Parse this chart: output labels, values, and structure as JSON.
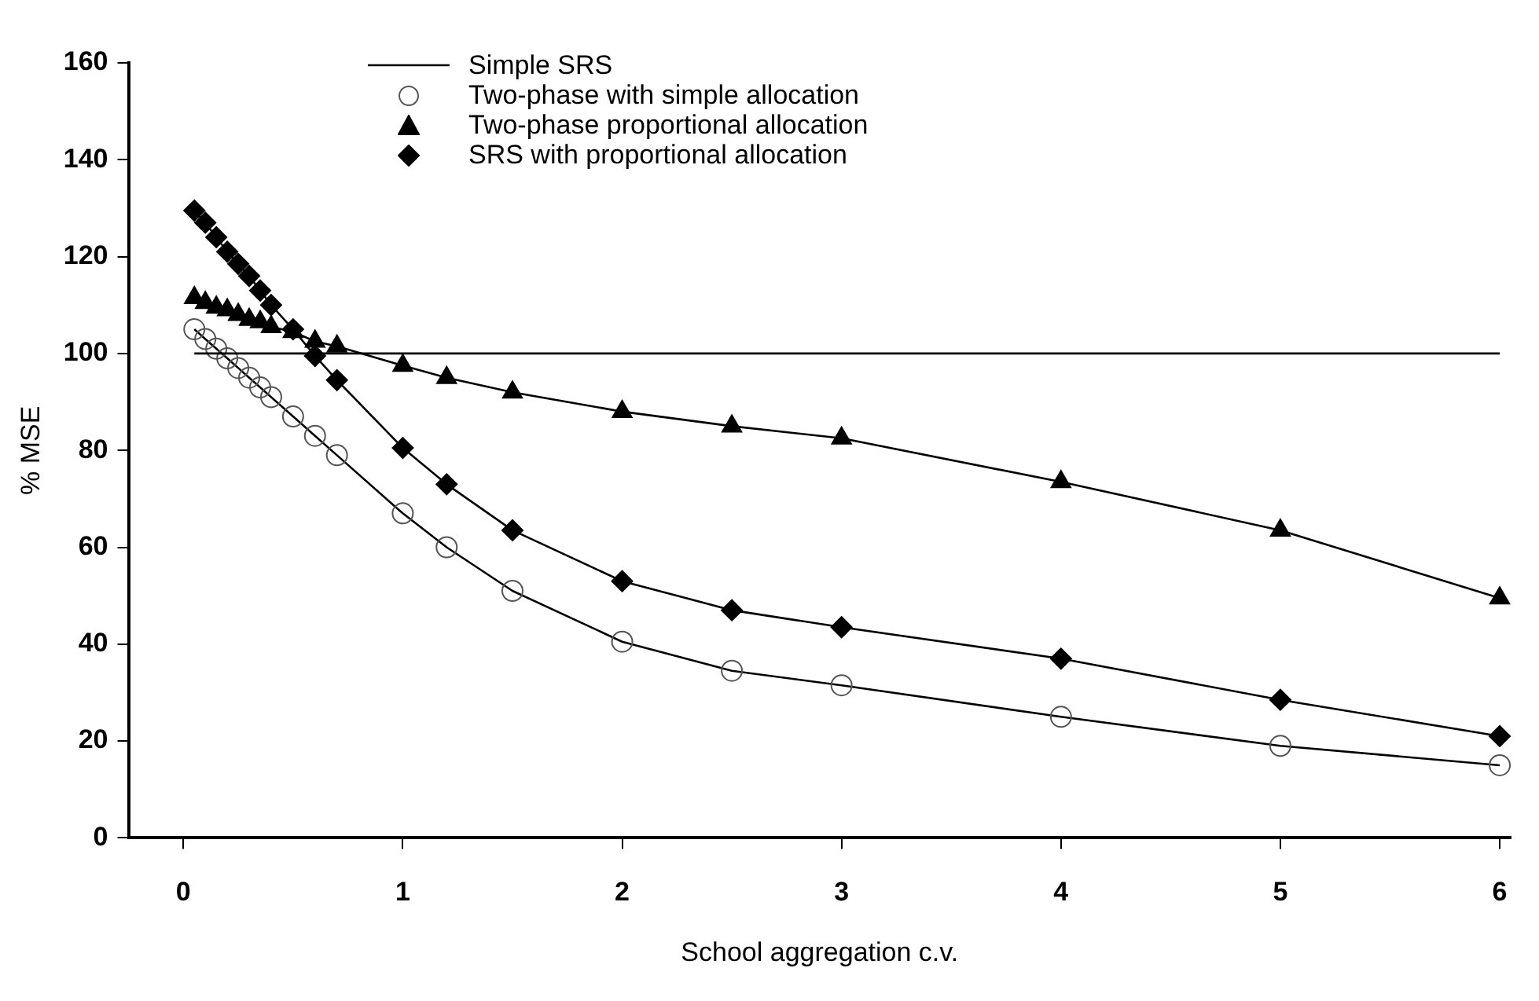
{
  "chart_data": {
    "type": "line",
    "xlabel": "School aggregation c.v.",
    "ylabel": "% MSE",
    "xlim": [
      -0.25,
      6.05
    ],
    "xticks": [
      0,
      1,
      2,
      3,
      4,
      5,
      6
    ],
    "ylim": [
      0,
      160
    ],
    "yticks": [
      0,
      20,
      40,
      60,
      80,
      100,
      120,
      140,
      160
    ],
    "grid": false,
    "legend": "top left",
    "series": [
      {
        "name": "Simple SRS",
        "color": "#000000",
        "marker": "none",
        "x": [
          0.05,
          6
        ],
        "values": [
          100,
          100
        ]
      },
      {
        "name": "Two-phase with simple allocation",
        "color": "#000000",
        "marker": "circle",
        "x": [
          0.05,
          0.1,
          0.15,
          0.2,
          0.25,
          0.3,
          0.35,
          0.4,
          0.5,
          0.6,
          0.7,
          1,
          1.2,
          1.5,
          2,
          2.5,
          3,
          4,
          5,
          6
        ],
        "values": [
          105,
          103,
          101,
          99,
          97,
          95,
          93,
          91,
          87,
          83,
          79,
          67,
          60,
          51,
          40.5,
          34.5,
          31.5,
          25,
          19,
          15
        ]
      },
      {
        "name": "Two-phase proportional allocation",
        "color": "#000000",
        "marker": "triangle",
        "x": [
          0.05,
          0.1,
          0.15,
          0.2,
          0.25,
          0.3,
          0.35,
          0.4,
          0.5,
          0.6,
          0.7,
          1,
          1.2,
          1.5,
          2,
          2.5,
          3,
          4,
          5,
          6
        ],
        "values": [
          111.5,
          110.5,
          109.5,
          109,
          108,
          107,
          106.5,
          105.5,
          104.5,
          102.5,
          101.5,
          97.5,
          95,
          92,
          88,
          85,
          82.5,
          73.5,
          63.5,
          49.5
        ]
      },
      {
        "name": "SRS with proportional allocation",
        "color": "#000000",
        "marker": "diamond",
        "x": [
          0.05,
          0.1,
          0.15,
          0.2,
          0.25,
          0.3,
          0.35,
          0.4,
          0.5,
          0.6,
          0.7,
          1,
          1.2,
          1.5,
          2,
          2.5,
          3,
          4,
          5,
          6
        ],
        "values": [
          129.5,
          127,
          124,
          121,
          118.5,
          116,
          113,
          110,
          105,
          99.5,
          94.5,
          80.5,
          73,
          63.5,
          53,
          47,
          43.5,
          37,
          28.5,
          21
        ]
      }
    ]
  }
}
